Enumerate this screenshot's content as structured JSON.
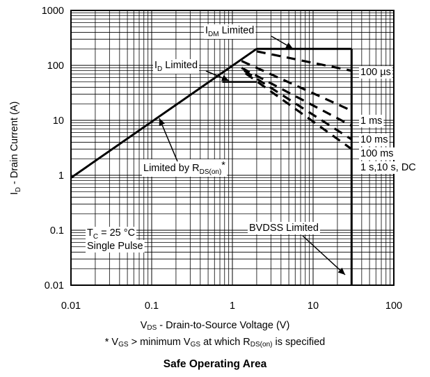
{
  "chart_data": {
    "type": "line",
    "title": "Safe Operating Area",
    "xscale": "log",
    "yscale": "log",
    "xlim": [
      0.01,
      100
    ],
    "ylim": [
      0.01,
      1000
    ],
    "grid": true,
    "x_ticks": [
      "0.01",
      "0.1",
      "1",
      "10",
      "100"
    ],
    "y_ticks": [
      "0.01",
      "0.1",
      "1",
      "10",
      "100",
      "1000"
    ],
    "xlabel": {
      "main": "V",
      "sub": "DS",
      "rest": " - Drain-to-Source Voltage (V)"
    },
    "ylabel": {
      "main": "I",
      "sub": "D",
      "rest": " - Drain Current (A)"
    },
    "footnote": {
      "p1": "* V",
      "s1": "GS",
      "p2": " > minimum V",
      "s2": "GS",
      "p3": " at which R",
      "s3": "DS(on)",
      "p4": " is specified"
    },
    "limits": {
      "rdson": [
        [
          0.01,
          0.9
        ],
        [
          2.0,
          200
        ]
      ],
      "idm": [
        [
          2.0,
          200
        ],
        [
          30,
          200
        ]
      ],
      "id": [
        [
          0.75,
          50
        ],
        [
          2.0,
          50
        ]
      ],
      "bvdss": [
        [
          30,
          0.01
        ],
        [
          30,
          200
        ]
      ]
    },
    "series": [
      {
        "name": "100 µs",
        "points": [
          [
            2.0,
            180
          ],
          [
            30,
            80
          ]
        ]
      },
      {
        "name": "1 ms",
        "points": [
          [
            1.3,
            120
          ],
          [
            30,
            15
          ]
        ]
      },
      {
        "name": "10 ms",
        "points": [
          [
            1.3,
            90
          ],
          [
            30,
            8
          ]
        ]
      },
      {
        "name": "100 ms",
        "points": [
          [
            1.4,
            80
          ],
          [
            30,
            4.5
          ]
        ]
      },
      {
        "name": "1 s,10 s, DC",
        "points": [
          [
            1.45,
            72
          ],
          [
            30,
            3
          ]
        ]
      }
    ],
    "annotations": {
      "idm": {
        "main": "I",
        "sub": "DM",
        "rest": " Limited"
      },
      "id": {
        "main": "I",
        "sub": "D",
        "rest": " Limited"
      },
      "rdson": {
        "main": "Limited by R",
        "sub": "DS(on)",
        "rest": "*"
      },
      "bvdss": "BVDSS Limited",
      "cond1": {
        "main": "T",
        "sub": "C",
        "rest": " = 25 °C"
      },
      "cond2": "Single Pulse"
    }
  }
}
